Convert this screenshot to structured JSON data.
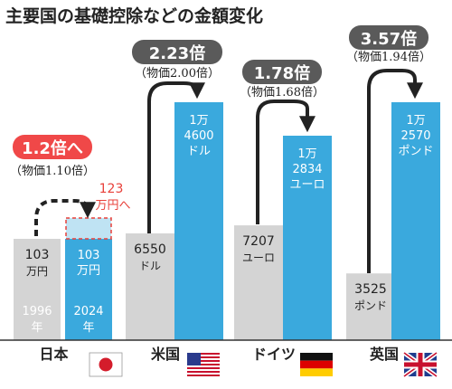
{
  "chart_data": {
    "type": "bar",
    "title": "主要国の基礎控除などの金額変化",
    "categories": [
      "日本",
      "米国",
      "ドイツ",
      "英国"
    ],
    "series": [
      {
        "name": "",
        "values": [
          103,
          6550,
          7207,
          3525
        ]
      },
      {
        "name": "",
        "values": [
          103,
          14600,
          12834,
          12570
        ]
      }
    ],
    "bar_labels": [
      {
        "old": [
          "103",
          "万円"
        ],
        "old_year": [
          "1996",
          "年"
        ],
        "new": [
          "103",
          "万円"
        ],
        "new_year": [
          "2024",
          "年"
        ]
      },
      {
        "old": [
          "6550",
          "ドル"
        ],
        "new": [
          "1万",
          "4600",
          "ドル"
        ]
      },
      {
        "old": [
          "7207",
          "ユーロ"
        ],
        "new": [
          "1万",
          "2834",
          "ユーロ"
        ]
      },
      {
        "old": [
          "3525",
          "ポンド"
        ],
        "new": [
          "1万",
          "2570",
          "ポンド"
        ]
      }
    ],
    "ratios": [
      "1.2倍へ",
      "2.23倍",
      "1.78倍",
      "3.57倍"
    ],
    "prices": [
      "（物価1.10倍）",
      "（物価2.00倍）",
      "（物価1.68倍）",
      "（物価1.94倍）"
    ],
    "japan_target": {
      "value": 123,
      "label": [
        "123",
        "万円へ"
      ]
    },
    "flags": [
      "japan-flag",
      "usa-flag",
      "germany-flag",
      "uk-flag"
    ],
    "colors": {
      "old_bar": "#d4d4d4",
      "new_bar": "#3aa9dd",
      "japan_ratio_bg": "#f04848",
      "ratio_bg": "#5a5a5a",
      "target_fill": "#bfe3f3",
      "target_border": "#e8403a",
      "target_text": "#e8403a"
    }
  }
}
